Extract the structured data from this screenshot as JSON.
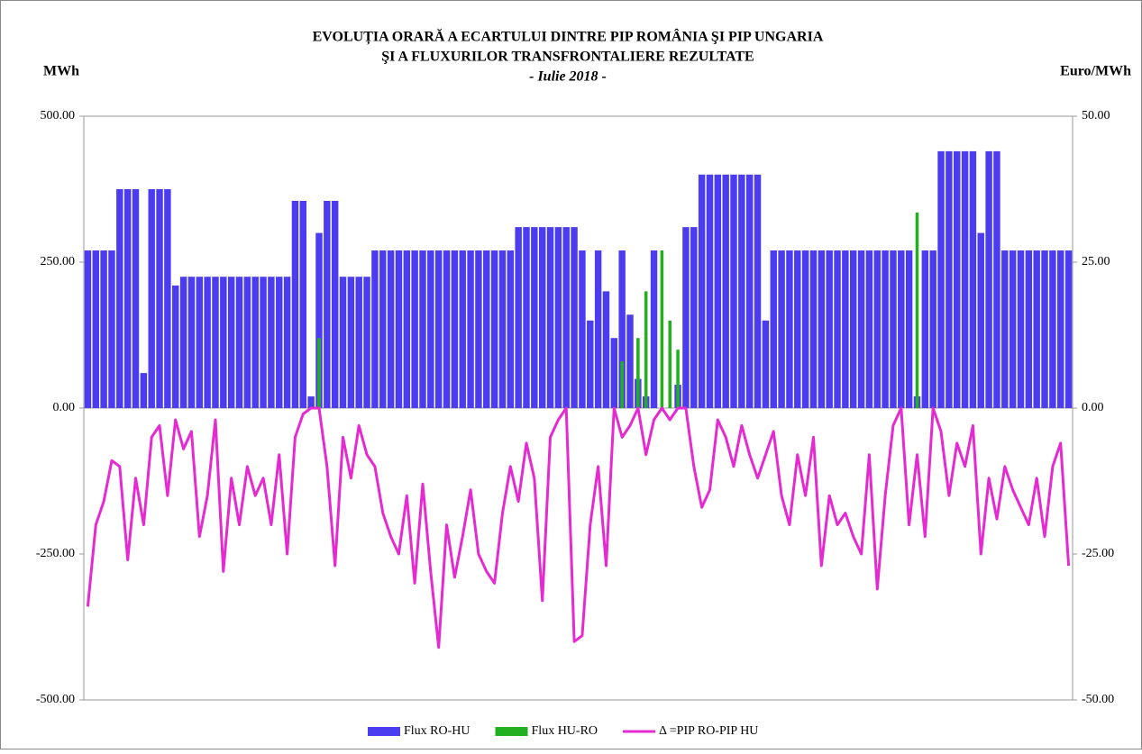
{
  "chart_data": {
    "type": "bar-line",
    "title": [
      "EVOLUȚIA  ORARĂ A ECARTULUI  DINTRE PIP ROMÂNIA ŞI PIP UNGARIA",
      "ŞI A FLUXURILOR  TRANSFRONTALIERE  REZULTATE"
    ],
    "subtitle": "- Iulie 2018 -",
    "y_label": "MWh",
    "y2_label": "Euro/MWh",
    "ylim": [
      -500,
      500
    ],
    "yticks": [
      {
        "value": -500,
        "label": "-500.00"
      },
      {
        "value": -250,
        "label": "-250.00"
      },
      {
        "value": 0,
        "label": "0.00"
      },
      {
        "value": 250,
        "label": "250.00"
      },
      {
        "value": 500,
        "label": "500.00"
      }
    ],
    "y2lim": [
      -50,
      50
    ],
    "y2ticks": [
      {
        "value": -50,
        "label": "-50.00"
      },
      {
        "value": -25,
        "label": "-25.00"
      },
      {
        "value": 0,
        "label": "0.00"
      },
      {
        "value": 25,
        "label": "25.00"
      },
      {
        "value": 50,
        "label": "50.00"
      }
    ],
    "series": [
      {
        "name": "Flux RO-HU",
        "kind": "bar",
        "color": "#4b3cf0",
        "values": [
          270,
          270,
          270,
          270,
          375,
          375,
          375,
          60,
          375,
          375,
          375,
          210,
          225,
          225,
          225,
          225,
          225,
          225,
          225,
          225,
          225,
          225,
          225,
          225,
          225,
          225,
          355,
          355,
          20,
          300,
          355,
          355,
          225,
          225,
          225,
          225,
          270,
          270,
          270,
          270,
          270,
          270,
          270,
          270,
          270,
          270,
          270,
          270,
          270,
          270,
          270,
          270,
          270,
          270,
          310,
          310,
          310,
          310,
          310,
          310,
          310,
          310,
          270,
          150,
          270,
          200,
          120,
          270,
          160,
          50,
          20,
          270,
          0,
          0,
          40,
          310,
          310,
          400,
          400,
          400,
          400,
          400,
          400,
          400,
          400,
          150,
          270,
          270,
          270,
          270,
          270,
          270,
          270,
          270,
          270,
          270,
          270,
          270,
          270,
          270,
          270,
          270,
          270,
          270,
          20,
          270,
          270,
          440,
          440,
          440,
          440,
          440,
          300,
          440,
          440,
          270,
          270,
          270,
          270,
          270,
          270,
          270,
          270,
          270
        ]
      },
      {
        "name": "Flux HU-RO",
        "kind": "bar",
        "color": "#22b020",
        "values": [
          0,
          0,
          0,
          0,
          0,
          0,
          0,
          0,
          0,
          0,
          0,
          0,
          0,
          0,
          0,
          0,
          0,
          0,
          0,
          0,
          0,
          0,
          0,
          0,
          0,
          0,
          0,
          0,
          0,
          120,
          0,
          0,
          0,
          0,
          0,
          0,
          0,
          0,
          0,
          0,
          0,
          0,
          0,
          0,
          0,
          0,
          0,
          0,
          0,
          0,
          0,
          0,
          0,
          0,
          0,
          0,
          0,
          0,
          0,
          0,
          0,
          0,
          0,
          0,
          0,
          0,
          0,
          80,
          0,
          120,
          200,
          0,
          270,
          150,
          100,
          0,
          0,
          0,
          0,
          0,
          0,
          0,
          0,
          0,
          0,
          0,
          0,
          0,
          0,
          0,
          0,
          0,
          0,
          0,
          0,
          0,
          0,
          0,
          0,
          0,
          0,
          0,
          0,
          0,
          335,
          0,
          0,
          0,
          0,
          0,
          0,
          0,
          0,
          0,
          0,
          0,
          0,
          0,
          0,
          0,
          0,
          0,
          0,
          0
        ]
      },
      {
        "name": "Δ =PIP RO-PIP HU",
        "kind": "line",
        "axis": "y2",
        "color": "#e62ad2",
        "values": [
          -34,
          -20,
          -16,
          -9,
          -10,
          -26,
          -12,
          -20,
          -5,
          -3,
          -15,
          -2,
          -7,
          -4,
          -22,
          -15,
          -2,
          -28,
          -12,
          -20,
          -10,
          -15,
          -12,
          -20,
          -8,
          -25,
          -5,
          -1,
          0,
          0,
          -10,
          -27,
          -5,
          -12,
          -3,
          -8,
          -10,
          -18,
          -22,
          -25,
          -15,
          -30,
          -13,
          -28,
          -41,
          -20,
          -29,
          -22,
          -14,
          -25,
          -28,
          -30,
          -18,
          -10,
          -16,
          -6,
          -12,
          -33,
          -5,
          -2,
          0,
          -40,
          -39,
          -20,
          -10,
          -27,
          0,
          -5,
          -3,
          0,
          -8,
          -2,
          0,
          -2,
          0,
          0,
          -10,
          -17,
          -14,
          -2,
          -5,
          -10,
          -3,
          -8,
          -12,
          -8,
          -4,
          -15,
          -20,
          -8,
          -15,
          -5,
          -27,
          -15,
          -20,
          -18,
          -22,
          -25,
          -8,
          -31,
          -15,
          -3,
          0,
          -20,
          -8,
          -22,
          0,
          -4,
          -15,
          -6,
          -10,
          -3,
          -25,
          -12,
          -19,
          -10,
          -14,
          -17,
          -20,
          -12,
          -22,
          -10,
          -6,
          -27
        ]
      }
    ]
  }
}
